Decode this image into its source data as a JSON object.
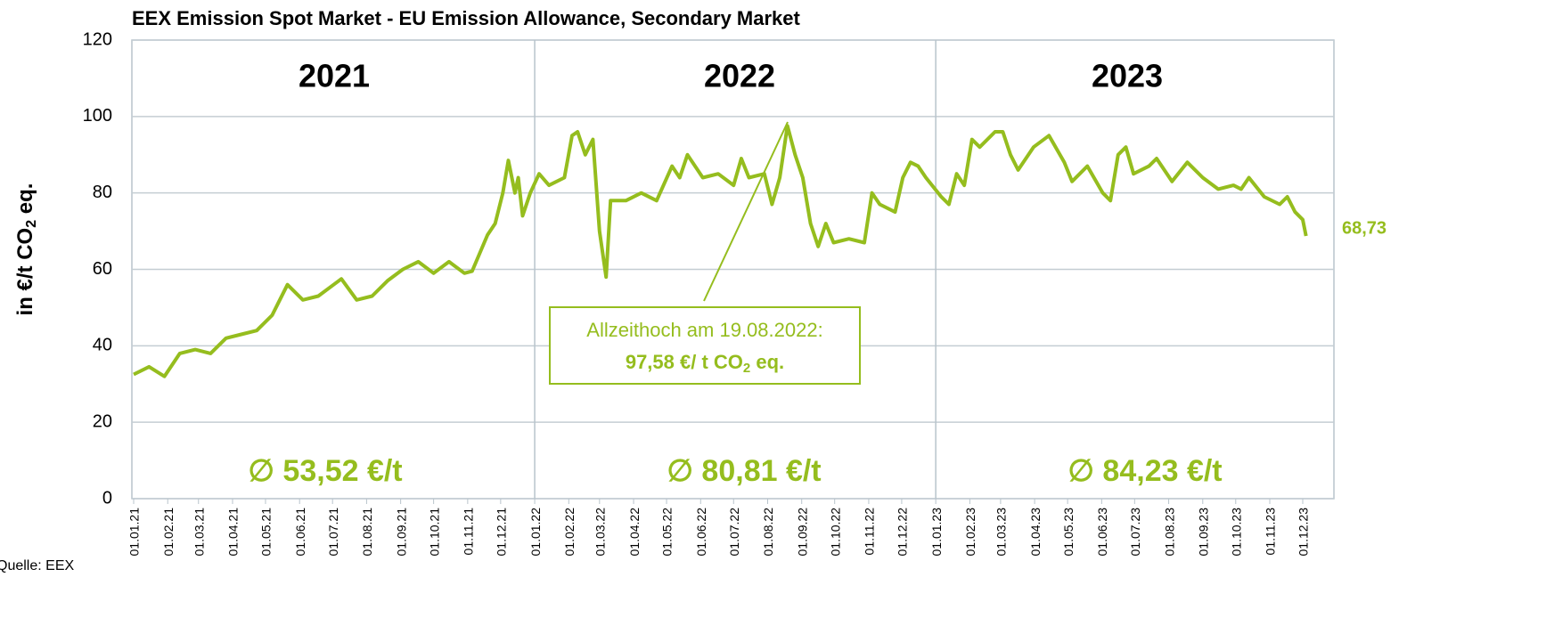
{
  "chart_data": {
    "type": "line",
    "title": "EEX Emission Spot Market - EU Emission Allowance, Secondary Market",
    "y_label": [
      "in €/t CO",
      "2",
      " eq."
    ],
    "source": "Quelle: EEX",
    "x": [
      "01.01.21",
      "15.01.21",
      "29.01.21",
      "12.02.21",
      "26.02.21",
      "12.03.21",
      "26.03.21",
      "09.04.21",
      "23.04.21",
      "07.05.21",
      "14.05.21",
      "21.05.21",
      "04.06.21",
      "18.06.21",
      "02.07.21",
      "09.07.21",
      "23.07.21",
      "06.08.21",
      "20.08.21",
      "03.09.21",
      "17.09.21",
      "01.10.21",
      "15.10.21",
      "29.10.21",
      "05.11.21",
      "19.11.21",
      "26.11.21",
      "03.12.21",
      "08.12.21",
      "14.12.21",
      "17.12.21",
      "21.12.21",
      "28.12.21",
      "05.01.22",
      "14.01.22",
      "28.01.22",
      "04.02.22",
      "09.02.22",
      "16.02.22",
      "23.02.22",
      "01.03.22",
      "07.03.22",
      "11.03.22",
      "25.03.22",
      "08.04.22",
      "22.04.22",
      "06.05.22",
      "13.05.22",
      "20.05.22",
      "03.06.22",
      "17.06.22",
      "01.07.22",
      "08.07.22",
      "15.07.22",
      "29.07.22",
      "05.08.22",
      "12.08.22",
      "19.08.22",
      "26.08.22",
      "02.09.22",
      "09.09.22",
      "16.09.22",
      "23.09.22",
      "30.09.22",
      "14.10.22",
      "28.10.22",
      "04.11.22",
      "11.11.22",
      "25.11.22",
      "02.12.22",
      "09.12.22",
      "16.12.22",
      "23.12.22",
      "06.01.23",
      "13.01.23",
      "20.01.23",
      "27.01.23",
      "03.02.23",
      "10.02.23",
      "24.02.23",
      "03.03.23",
      "10.03.23",
      "17.03.23",
      "31.03.23",
      "14.04.23",
      "28.04.23",
      "05.05.23",
      "19.05.23",
      "02.06.23",
      "09.06.23",
      "16.06.23",
      "23.06.23",
      "30.06.23",
      "14.07.23",
      "21.07.23",
      "04.08.23",
      "18.08.23",
      "01.09.23",
      "15.09.23",
      "29.09.23",
      "06.10.23",
      "13.10.23",
      "27.10.23",
      "10.11.23",
      "17.11.23",
      "24.11.23",
      "01.12.23",
      "04.12.23"
    ],
    "series": [
      {
        "name": "EUA",
        "color": "#95bd1e",
        "values": [
          32.5,
          34.5,
          32,
          38,
          39,
          38,
          42,
          43,
          44,
          48,
          52,
          56,
          52,
          53,
          56,
          57.5,
          52,
          53,
          57,
          60,
          62,
          59,
          62,
          59,
          59.5,
          69,
          72,
          80,
          88.5,
          80,
          84,
          74,
          80,
          85,
          82,
          84,
          95,
          96,
          90,
          94,
          70,
          58,
          78,
          78,
          80,
          78,
          87,
          84,
          90,
          84,
          85,
          82,
          89,
          84,
          85,
          77,
          84,
          97.58,
          90,
          84,
          72,
          66,
          72,
          67,
          68,
          67,
          80,
          77,
          75,
          84,
          88,
          87,
          84,
          79,
          77,
          85,
          82,
          94,
          92,
          96,
          96,
          90,
          86,
          92,
          95,
          88,
          83,
          87,
          80,
          78,
          90,
          92,
          85,
          87,
          89,
          83,
          88,
          84,
          81,
          82,
          81,
          84,
          79,
          77,
          79,
          75,
          73,
          68.73
        ]
      }
    ],
    "last_label": "68,73",
    "ylim": [
      0,
      120
    ],
    "yticks": [
      0,
      20,
      40,
      60,
      80,
      100,
      120
    ],
    "grid": true,
    "xticks": [
      "01.01.21",
      "01.02.21",
      "01.03.21",
      "01.04.21",
      "01.05.21",
      "01.06.21",
      "01.07.21",
      "01.08.21",
      "01.09.21",
      "01.10.21",
      "01.11.21",
      "01.12.21",
      "01.01.22",
      "01.02.22",
      "01.03.22",
      "01.04.22",
      "01.05.22",
      "01.06.22",
      "01.07.22",
      "01.08.22",
      "01.09.22",
      "01.10.22",
      "01.11.22",
      "01.12.22",
      "01.01.23",
      "01.02.23",
      "01.03.23",
      "01.04.23",
      "01.05.23",
      "01.06.23",
      "01.07.23",
      "01.08.23",
      "01.09.23",
      "01.10.23",
      "01.11.23",
      "01.12.23"
    ],
    "years": [
      "2021",
      "2022",
      "2023"
    ],
    "averages": [
      "∅ 53,52 €/t",
      "∅ 80,81 €/t",
      "∅  84,23 €/t"
    ],
    "callout": {
      "line1": "Allzeithoch am 19.08.2022:",
      "line2": [
        "97,58 €/ t CO",
        "2",
        " eq."
      ]
    }
  }
}
